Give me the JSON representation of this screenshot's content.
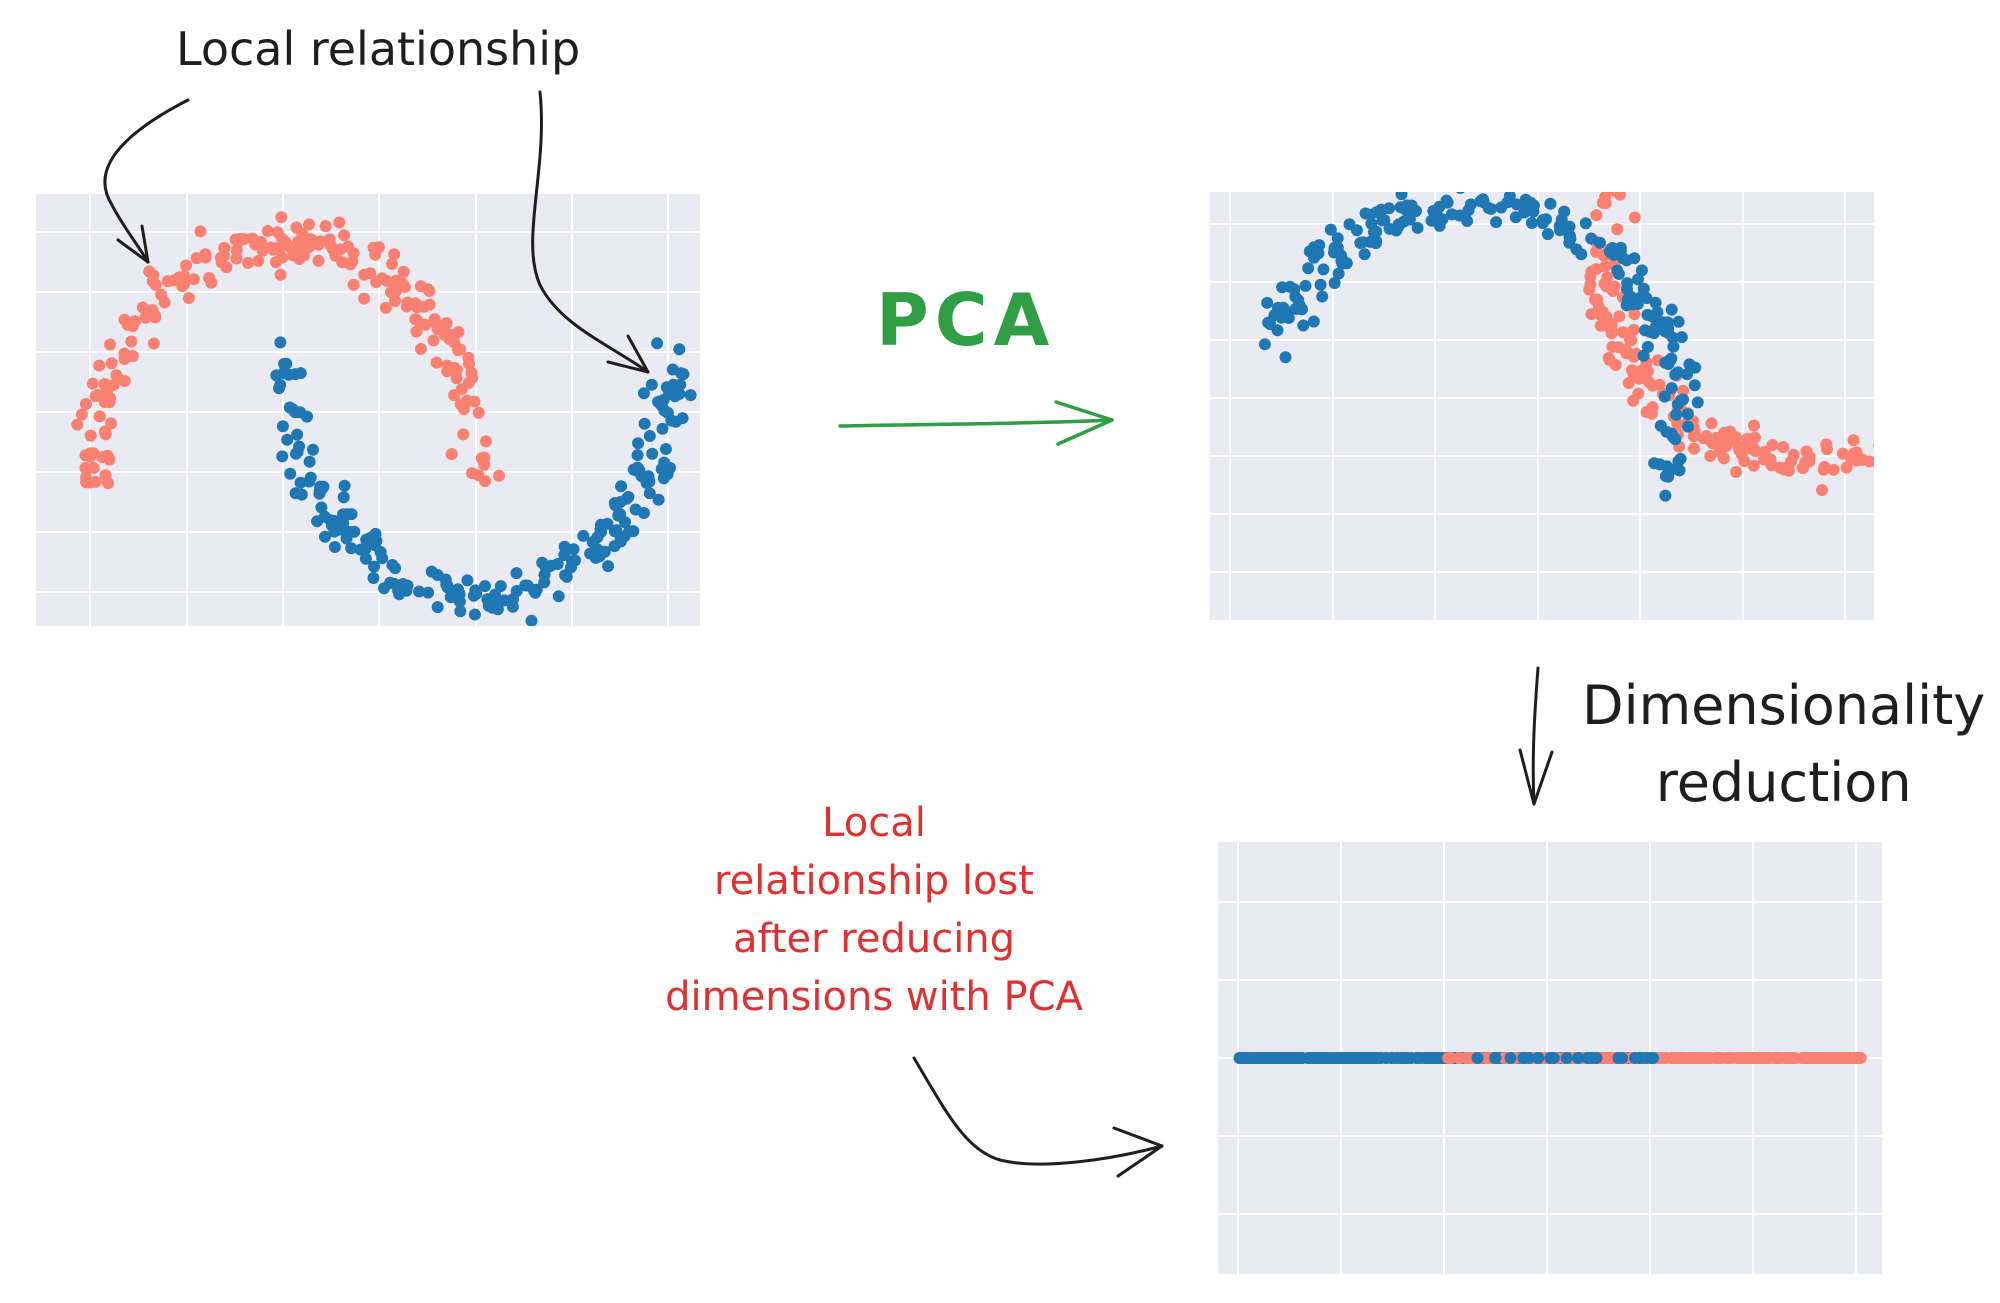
{
  "annotations": {
    "local_relationship": "Local relationship",
    "pca": "PCA",
    "dimensionality_reduction": [
      "Dimensionality",
      "reduction"
    ],
    "local_relationship_lost": [
      "Local",
      "relationship lost",
      "after reducing",
      "dimensions with PCA"
    ]
  },
  "colors": {
    "class_a": "#fa8072",
    "class_b": "#1f77b4",
    "plot_background": "#eaeaf2",
    "grid": "#ffffff",
    "arrow_dark": "#1e1e1e",
    "arrow_green": "#2f9e44",
    "annotation_red": "#e03131"
  },
  "chart_data": [
    {
      "type": "scatter",
      "description_position": "top-left",
      "xlim": [
        -1.3,
        2.15
      ],
      "ylim": [
        -0.62,
        1.2
      ],
      "grid": true,
      "series": [
        {
          "color": "#fa8072",
          "shape": "upper-moon",
          "n": 220
        },
        {
          "color": "#1f77b4",
          "shape": "lower-moon",
          "n": 220
        }
      ]
    },
    {
      "type": "scatter",
      "description_position": "top-right",
      "xlim": [
        -1.05,
        2.0
      ],
      "ylim": [
        -1.35,
        1.05
      ],
      "grid": true,
      "series": [
        {
          "color": "#fa8072",
          "shape": "pca-projected-upper-moon",
          "n": 220
        },
        {
          "color": "#1f77b4",
          "shape": "pca-projected-lower-moon",
          "n": 220
        }
      ]
    },
    {
      "type": "scatter",
      "description_position": "bottom-right",
      "xlim": [
        -1.1,
        2.0
      ],
      "ylim": [
        -1.0,
        1.0
      ],
      "grid": true,
      "series": [
        {
          "color": "#1f77b4",
          "shape": "1d-projection",
          "x_range": [
            -1.0,
            0.95
          ]
        },
        {
          "color": "#fa8072",
          "shape": "1d-projection",
          "x_range": [
            -0.05,
            1.9
          ]
        }
      ]
    }
  ]
}
